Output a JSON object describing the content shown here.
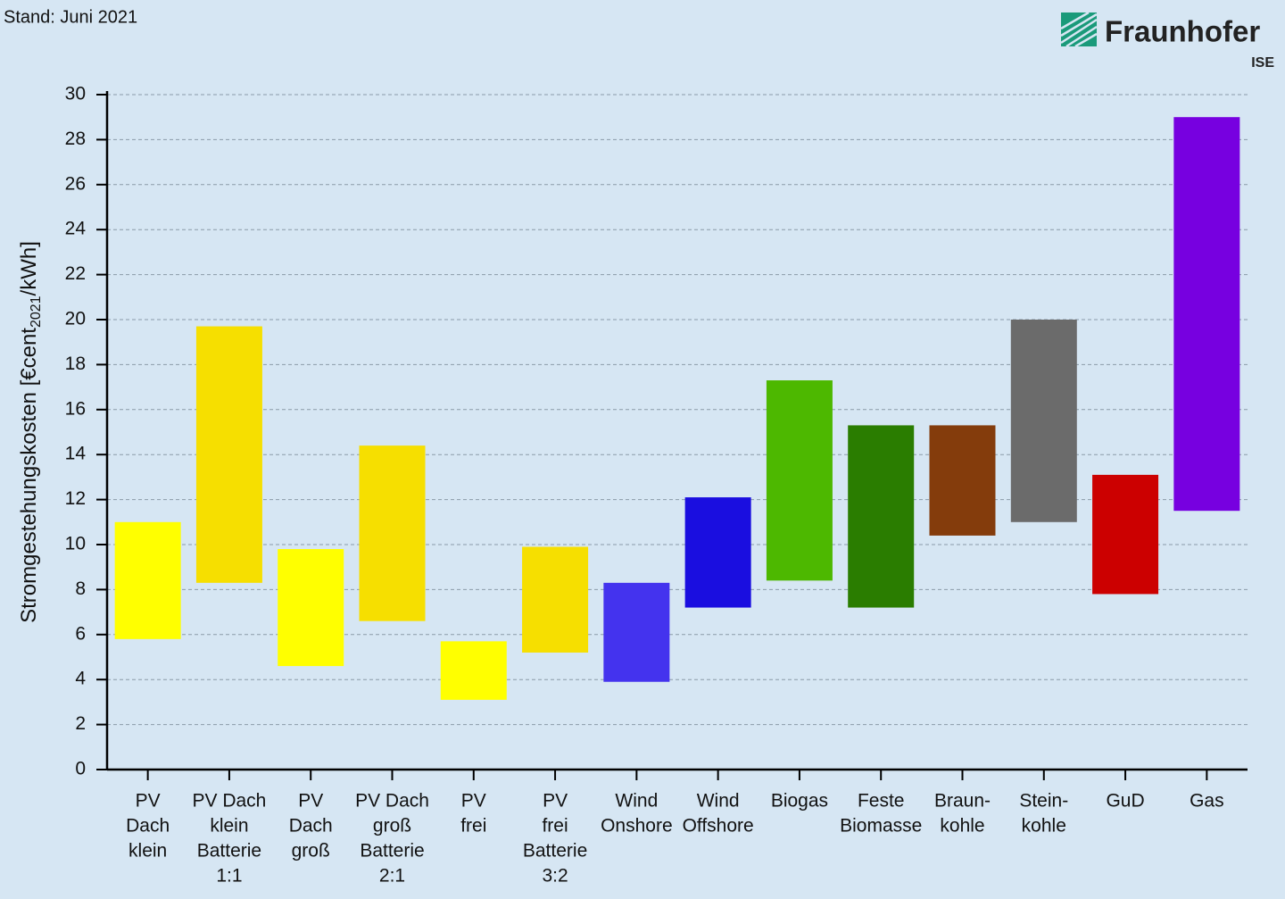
{
  "note": "Stand: Juni 2021",
  "logo": {
    "name": "Fraunhofer",
    "unit": "ISE"
  },
  "chart_data": {
    "type": "range_bar",
    "y_label": [
      "Stromgestehungskosten [€cent",
      "2021",
      "/kWh]"
    ],
    "categories": [
      [
        "PV",
        "Dach",
        "klein"
      ],
      [
        "PV Dach",
        "klein",
        "Batterie",
        "1:1"
      ],
      [
        "PV",
        "Dach",
        "groß"
      ],
      [
        "PV Dach",
        "groß",
        "Batterie",
        "2:1"
      ],
      [
        "PV",
        "frei"
      ],
      [
        "PV",
        "frei",
        "Batterie",
        "3:2"
      ],
      [
        "Wind",
        "Onshore"
      ],
      [
        "Wind",
        "Offshore"
      ],
      [
        "Biogas"
      ],
      [
        "Feste",
        "Biomasse"
      ],
      [
        "Braun-",
        "kohle"
      ],
      [
        "Stein-",
        "kohle"
      ],
      [
        "GuD"
      ],
      [
        "Gas"
      ]
    ],
    "low": [
      5.8,
      8.3,
      4.6,
      6.6,
      3.1,
      5.2,
      3.9,
      7.2,
      8.4,
      7.2,
      10.4,
      11.0,
      7.8,
      11.5
    ],
    "high": [
      11.0,
      19.7,
      9.8,
      14.4,
      5.7,
      9.9,
      8.3,
      12.1,
      17.3,
      15.3,
      15.3,
      20.0,
      13.1,
      29.0
    ],
    "colors": [
      "#ffff00",
      "#f6df00",
      "#ffff00",
      "#f6df00",
      "#ffff00",
      "#f6df00",
      "#4433ee",
      "#1a0ee0",
      "#4db800",
      "#2a7d00",
      "#843c0c",
      "#6b6b6b",
      "#cc0000",
      "#7700e0"
    ],
    "ylim": [
      0,
      30
    ],
    "yticks": [
      0,
      2,
      4,
      6,
      8,
      10,
      12,
      14,
      16,
      18,
      20,
      22,
      24,
      26,
      28,
      30
    ],
    "grid": true
  }
}
